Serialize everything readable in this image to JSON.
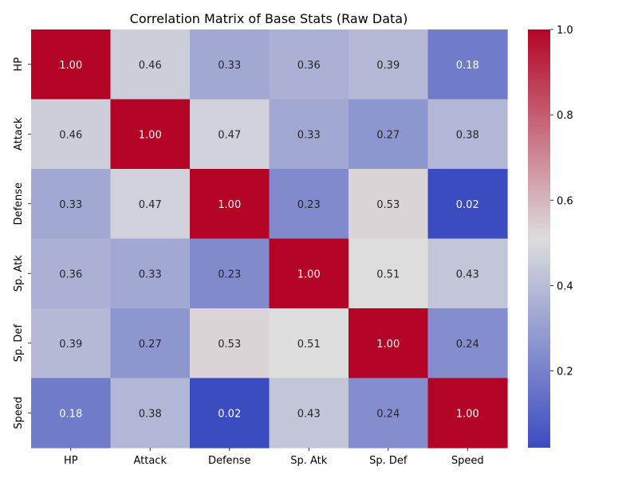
{
  "chart_data": {
    "type": "heatmap",
    "title": "Correlation Matrix of Base Stats (Raw Data)",
    "xlabel": "",
    "ylabel": "",
    "x_categories": [
      "HP",
      "Attack",
      "Defense",
      "Sp. Atk",
      "Sp. Def",
      "Speed"
    ],
    "y_categories": [
      "HP",
      "Attack",
      "Defense",
      "Sp. Atk",
      "Sp. Def",
      "Speed"
    ],
    "values": [
      [
        1.0,
        0.46,
        0.33,
        0.36,
        0.39,
        0.18
      ],
      [
        0.46,
        1.0,
        0.47,
        0.33,
        0.27,
        0.38
      ],
      [
        0.33,
        0.47,
        1.0,
        0.23,
        0.53,
        0.02
      ],
      [
        0.36,
        0.33,
        0.23,
        1.0,
        0.51,
        0.43
      ],
      [
        0.39,
        0.27,
        0.53,
        0.51,
        1.0,
        0.24
      ],
      [
        0.18,
        0.38,
        0.02,
        0.43,
        0.24,
        1.0
      ]
    ],
    "value_format": "0.00",
    "colormap": "coolwarm",
    "colormap_stops": [
      "#3b4cc0",
      "#dddddd",
      "#b40426"
    ],
    "colorbar": {
      "range": [
        0.02,
        1.0
      ],
      "ticks": [
        0.2,
        0.4,
        0.6,
        0.8,
        1.0
      ],
      "tick_labels": [
        "0.2",
        "0.4",
        "0.6",
        "0.8",
        "1.0"
      ]
    },
    "grid": false
  }
}
